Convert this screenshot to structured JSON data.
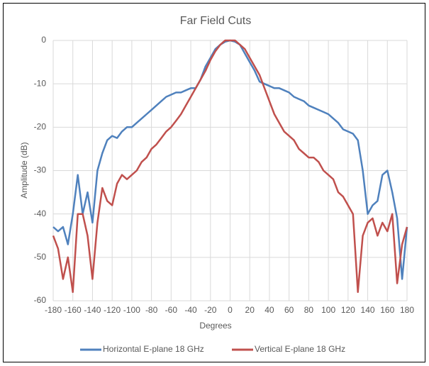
{
  "chart_data": {
    "type": "line",
    "title": "Far Field Cuts",
    "x_label": "Degrees",
    "y_label": "Amplitude (dB)",
    "x": [
      -180,
      -175,
      -170,
      -165,
      -160,
      -155,
      -150,
      -145,
      -140,
      -135,
      -130,
      -125,
      -120,
      -115,
      -110,
      -105,
      -100,
      -95,
      -90,
      -85,
      -80,
      -75,
      -70,
      -65,
      -60,
      -55,
      -50,
      -45,
      -40,
      -35,
      -30,
      -25,
      -20,
      -15,
      -10,
      -5,
      0,
      5,
      10,
      15,
      20,
      25,
      30,
      35,
      40,
      45,
      50,
      55,
      60,
      65,
      70,
      75,
      80,
      85,
      90,
      95,
      100,
      105,
      110,
      115,
      120,
      125,
      130,
      135,
      140,
      145,
      150,
      155,
      160,
      165,
      170,
      175,
      180
    ],
    "series": [
      {
        "name": "Horizontal E-plane 18 GHz",
        "color": "#4f81bd",
        "values": [
          -43,
          -44,
          -43,
          -47,
          -40,
          -31,
          -40,
          -35,
          -42,
          -30,
          -26,
          -23,
          -22,
          -22.5,
          -21,
          -20,
          -20,
          -19,
          -18,
          -17,
          -16,
          -15,
          -14,
          -13,
          -12.5,
          -12,
          -12,
          -11.5,
          -11,
          -11,
          -9,
          -6,
          -4,
          -2,
          -1,
          -0.3,
          0,
          -0.3,
          -1,
          -3,
          -5,
          -7,
          -9.5,
          -10,
          -10.5,
          -11,
          -11,
          -11.5,
          -12,
          -13,
          -13.5,
          -14,
          -15,
          -15.5,
          -16,
          -16.5,
          -17,
          -18,
          -19,
          -20.5,
          -21,
          -21.5,
          -23,
          -30,
          -40,
          -38,
          -37,
          -31,
          -30,
          -35,
          -41,
          -55,
          -43
        ]
      },
      {
        "name": "Vertical E-plane 18 GHz",
        "color": "#c0504d",
        "values": [
          -45,
          -48,
          -55,
          -50,
          -58,
          -40,
          -40,
          -45,
          -55,
          -42,
          -34,
          -37,
          -38,
          -33,
          -31,
          -32,
          -31,
          -30,
          -28,
          -27,
          -25,
          -24,
          -22.5,
          -21,
          -20,
          -18.5,
          -17,
          -15,
          -13,
          -11,
          -9,
          -7,
          -4.5,
          -2.5,
          -1,
          0,
          0,
          0,
          -1,
          -2,
          -4,
          -6,
          -8,
          -11,
          -14,
          -17,
          -19,
          -21,
          -22,
          -23,
          -25,
          -26,
          -27,
          -27,
          -28,
          -30,
          -31,
          -32,
          -35,
          -36,
          -38,
          -40,
          -58,
          -45,
          -42,
          -41,
          -45,
          -42,
          -44,
          -40,
          -56,
          -47,
          -43
        ]
      }
    ],
    "xlim": [
      -180,
      180
    ],
    "xticks": [
      -180,
      -160,
      -140,
      -120,
      -100,
      -80,
      -60,
      -40,
      -20,
      0,
      20,
      40,
      60,
      80,
      100,
      120,
      140,
      160,
      180
    ],
    "ylim": [
      -60,
      0
    ],
    "yticks": [
      -60,
      -50,
      -40,
      -30,
      -20,
      -10,
      0
    ],
    "grid": true,
    "legend": "bottom"
  }
}
